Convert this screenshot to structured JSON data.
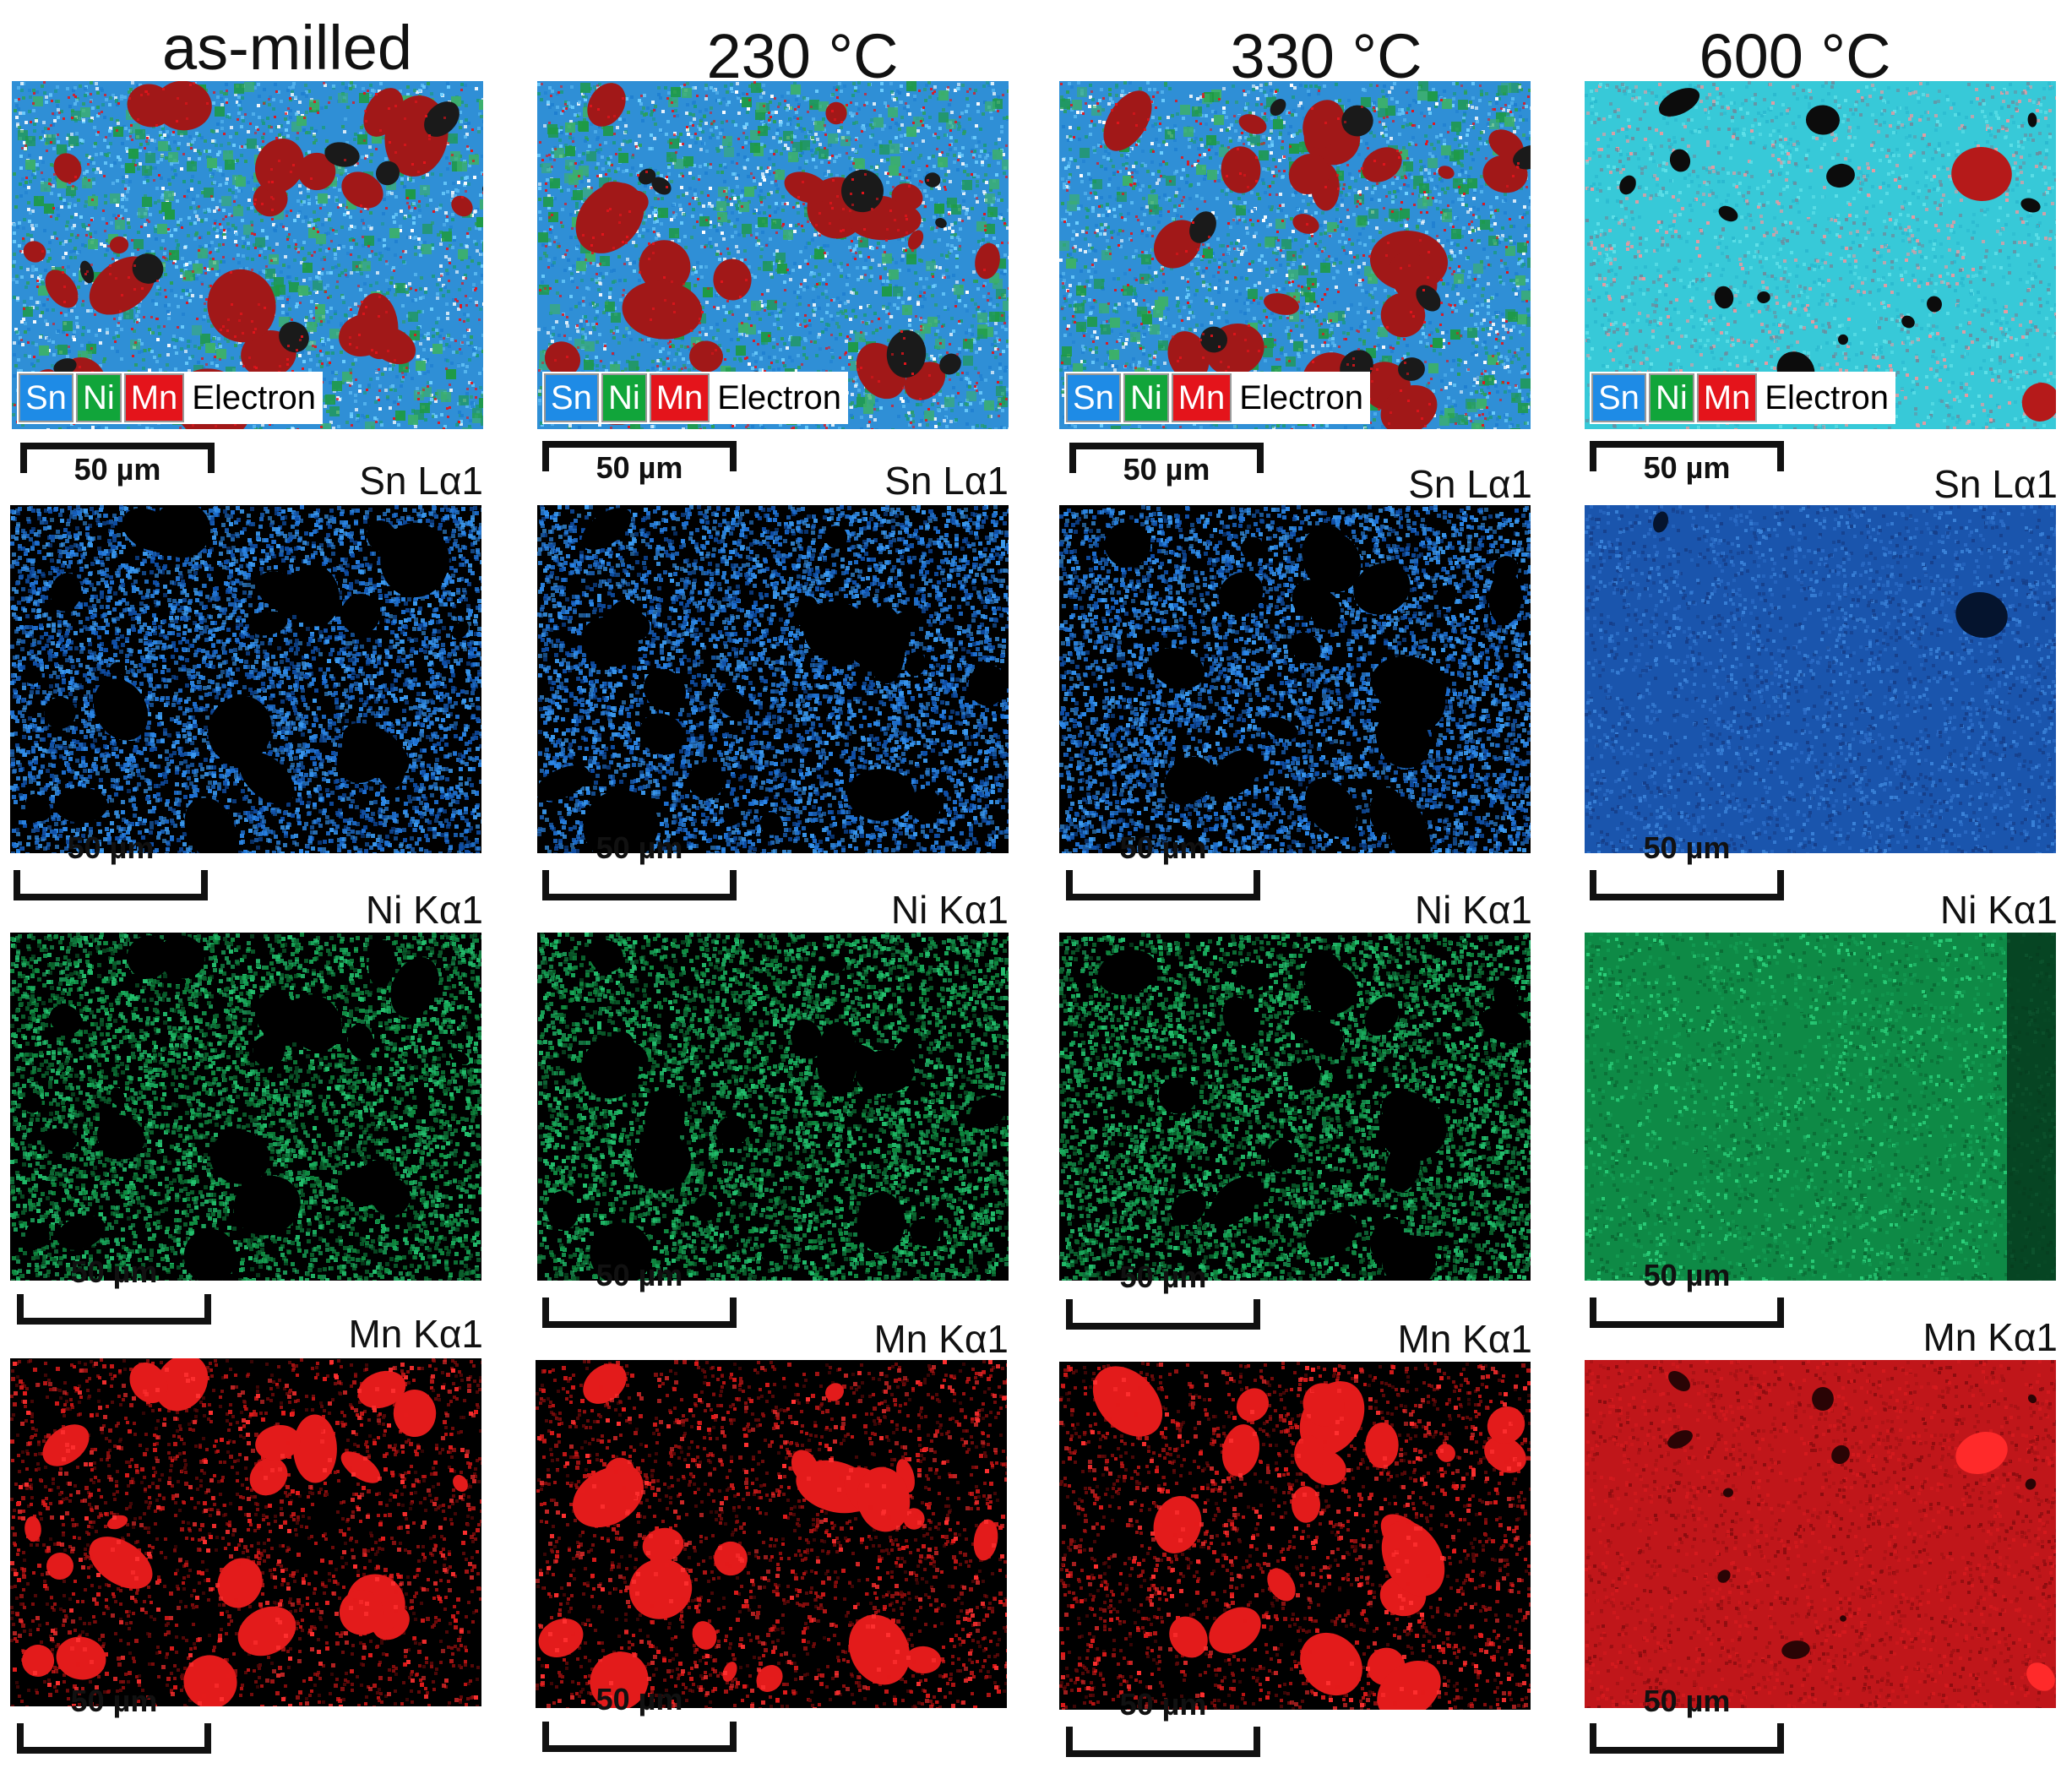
{
  "colors": {
    "sn": "#1e8be6",
    "ni": "#11b53a",
    "mn": "#e4141b",
    "background": "#ffffff",
    "map_background": "#000000"
  },
  "legend": {
    "sn": "Sn",
    "ni": "Ni",
    "mn": "Mn",
    "electron": "Electron"
  },
  "scale_label": "50 µm",
  "element_labels": {
    "sn": "Sn Lα1",
    "ni": "Ni Kα1",
    "mn": "Mn Kα1"
  },
  "columns": [
    {
      "title": "as-milled"
    },
    {
      "title": "230 °C"
    },
    {
      "title": "330 °C"
    },
    {
      "title": "600 °C"
    }
  ]
}
